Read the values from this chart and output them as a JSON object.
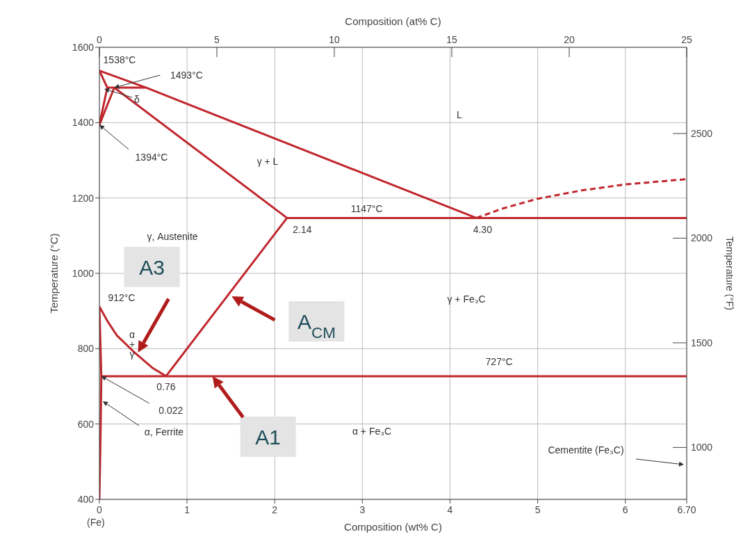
{
  "chart_data": {
    "type": "line",
    "xlabel": "Composition (wt% C)",
    "x2label": "Composition (at% C)",
    "ylabel": "Temperature (°C)",
    "y2label": "Temperature (°F)",
    "xlim": [
      0,
      6.7
    ],
    "xticks": [
      {
        "value": 0,
        "label": "0\n(Fe)"
      },
      1,
      2,
      3,
      4,
      5,
      6,
      {
        "value": 6.7,
        "label": "6.70"
      }
    ],
    "x2lim": [
      0,
      25
    ],
    "x2ticks": [
      0,
      5,
      10,
      15,
      20,
      25
    ],
    "ylim": [
      400,
      1600
    ],
    "yticks": [
      400,
      600,
      800,
      1000,
      1200,
      1400,
      1600
    ],
    "y2lim": [
      752,
      2912
    ],
    "y2ticks": [
      1000,
      1500,
      2000,
      2500
    ],
    "grid": true,
    "marker": "none",
    "line_style": "solid",
    "series": [
      {
        "color": "#c0272d",
        "x": [
          0,
          0.53,
          4.3
        ],
        "values": [
          1538,
          1493,
          1147
        ]
      },
      {
        "color": "#c0272d",
        "x": [
          0,
          0.09,
          0
        ],
        "values": [
          1538,
          1493,
          1394
        ]
      },
      {
        "color": "#c0272d",
        "x": [
          0,
          0.17
        ],
        "values": [
          1394,
          1493
        ]
      },
      {
        "color": "#c0272d",
        "x": [
          0.09,
          0.53
        ],
        "values": [
          1493,
          1493
        ]
      },
      {
        "color": "#c0272d",
        "x": [
          0.17,
          2.14
        ],
        "values": [
          1493,
          1147
        ]
      },
      {
        "color": "#c0272d",
        "x": [
          2.14,
          6.7
        ],
        "values": [
          1147,
          1147
        ]
      },
      {
        "color": "#c0272d",
        "x": [
          4.3,
          4.6,
          5.0,
          5.5,
          6.0,
          6.7
        ],
        "values": [
          1147,
          1172,
          1198,
          1220,
          1236,
          1250
        ],
        "line_style": "dashed"
      },
      {
        "color": "#c0272d",
        "x": [
          2.14,
          0.76
        ],
        "values": [
          1147,
          727
        ]
      },
      {
        "color": "#c0272d",
        "x": [
          0,
          0.1,
          0.2,
          0.4,
          0.6,
          0.76
        ],
        "values": [
          912,
          870,
          835,
          790,
          750,
          727
        ]
      },
      {
        "color": "#c0272d",
        "x": [
          0,
          0.022,
          0.015,
          0.008,
          0
        ],
        "values": [
          912,
          727,
          600,
          500,
          400
        ]
      },
      {
        "color": "#c0272d",
        "x": [
          0.022,
          6.7
        ],
        "values": [
          727,
          727
        ]
      }
    ],
    "annotations": [
      {
        "text": "1538°C",
        "x": 0,
        "y": 1538
      },
      {
        "text": "1493°C",
        "x": 0.17,
        "y": 1493
      },
      "δ",
      {
        "text": "1394°C",
        "x": 0,
        "y": 1394
      },
      "γ + L",
      "L",
      {
        "text": "1147°C",
        "x": 3.05,
        "y": 1147
      },
      {
        "text": "2.14",
        "x": 2.14,
        "y": 1147
      },
      {
        "text": "4.30",
        "x": 4.3,
        "y": 1147
      },
      "γ, Austenite",
      {
        "text": "912°C",
        "x": 0,
        "y": 912
      },
      "α\n+\nγ",
      {
        "text": "0.76",
        "x": 0.76,
        "y": 727
      },
      {
        "text": "0.022",
        "x": 0.022,
        "y": 727
      },
      "α, Ferrite",
      {
        "text": "727°C",
        "x": 4.56,
        "y": 727
      },
      "γ + Fe₃C",
      "α + Fe₃C",
      "Cementite (Fe₃C)",
      "A3",
      "A$_{CM}$",
      "A1"
    ]
  }
}
